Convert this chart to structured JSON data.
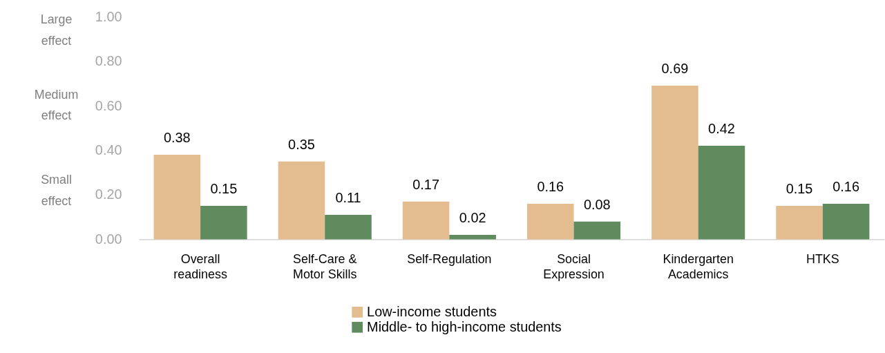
{
  "chart_data": {
    "type": "bar",
    "categories": [
      "Overall readiness",
      "Self-Care & Motor Skills",
      "Self-Regulation",
      "Social Expression",
      "Kindergarten Academics",
      "HTKS"
    ],
    "series": [
      {
        "name": "Low-income students",
        "color": "#e3bc8f",
        "values": [
          0.38,
          0.35,
          0.17,
          0.16,
          0.69,
          0.15
        ]
      },
      {
        "name": "Middle- to high-income students",
        "color": "#5f8b5f",
        "values": [
          0.15,
          0.11,
          0.02,
          0.08,
          0.42,
          0.16
        ]
      }
    ],
    "ylim": [
      0,
      1
    ],
    "yticks": [
      {
        "value": 0,
        "label": "0.00"
      },
      {
        "value": 0.2,
        "label": "0.20"
      },
      {
        "value": 0.4,
        "label": "0.40"
      },
      {
        "value": 0.6,
        "label": "0.60"
      },
      {
        "value": 0.8,
        "label": "0.80"
      },
      {
        "value": 1,
        "label": "1.00"
      }
    ],
    "annotations": [
      "Large effect",
      "Medium effect",
      "Small effect"
    ],
    "data_labels": true,
    "grid": false,
    "legend": "bottom"
  }
}
